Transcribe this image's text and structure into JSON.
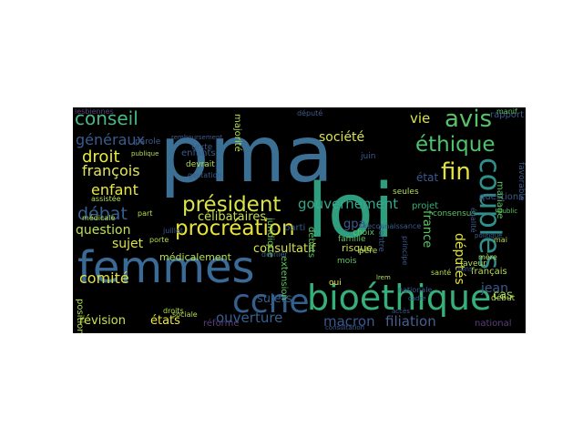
{
  "cloud": {
    "background": "#000000",
    "words": [
      {
        "text": "pma",
        "color": "#3b6f93"
      },
      {
        "text": "loi",
        "color": "#2f9e7f"
      },
      {
        "text": "femmes",
        "color": "#3a6a96"
      },
      {
        "text": "bioéthique",
        "color": "#35b07a"
      },
      {
        "text": "couples",
        "color": "#2f8f8a"
      },
      {
        "text": "ccne",
        "color": "#34608f"
      },
      {
        "text": "procréation",
        "color": "#e6e23a"
      },
      {
        "text": "président",
        "color": "#d9e24a"
      },
      {
        "text": "avis",
        "color": "#56c36a"
      },
      {
        "text": "fin",
        "color": "#e3e23d"
      },
      {
        "text": "conseil",
        "color": "#48b981"
      },
      {
        "text": "éthique",
        "color": "#4fc36b"
      },
      {
        "text": "comité",
        "color": "#e3e23d"
      },
      {
        "text": "gouvernement",
        "color": "#33a88a"
      },
      {
        "text": "débat",
        "color": "#35608f"
      },
      {
        "text": "enfant",
        "color": "#e8e83d"
      },
      {
        "text": "droit",
        "color": "#e8e83d"
      },
      {
        "text": "françois",
        "color": "#e1e65d"
      },
      {
        "text": "généraux",
        "color": "#3b5b8c"
      },
      {
        "text": "ouverture",
        "color": "#35608f"
      },
      {
        "text": "filiation",
        "color": "#4a5f8f"
      },
      {
        "text": "macron",
        "color": "#3b5890"
      },
      {
        "text": "sujets",
        "color": "#365d8d"
      },
      {
        "text": "révision",
        "color": "#cde24a"
      },
      {
        "text": "états",
        "color": "#e8e83d"
      },
      {
        "text": "question",
        "color": "#bde04f"
      },
      {
        "text": "sujet",
        "color": "#d9e24a"
      },
      {
        "text": "célibataires",
        "color": "#c8df52"
      },
      {
        "text": "consultatif",
        "color": "#d6e44a"
      },
      {
        "text": "société",
        "color": "#d9e24a"
      },
      {
        "text": "vie",
        "color": "#d9e24a"
      },
      {
        "text": "état",
        "color": "#3b5b8c"
      },
      {
        "text": "gpa",
        "color": "#3b5b8c"
      },
      {
        "text": "france",
        "color": "#5bc462"
      },
      {
        "text": "députés",
        "color": "#e3e23d"
      },
      {
        "text": "jean",
        "color": "#3b5b8c"
      },
      {
        "text": "cas",
        "color": "#a7d856"
      },
      {
        "text": "majorité",
        "color": "#b5de52"
      },
      {
        "text": "enfants",
        "color": "#3b5b8c"
      },
      {
        "text": "parole",
        "color": "#3b5b8c"
      },
      {
        "text": "texte",
        "color": "#3b5b8c"
      },
      {
        "text": "gestation",
        "color": "#3b5b8c"
      },
      {
        "text": "extension",
        "color": "#5bc462"
      },
      {
        "text": "juridique",
        "color": "#6cc55d"
      },
      {
        "text": "débats",
        "color": "#5bc462"
      },
      {
        "text": "risque",
        "color": "#c8df52"
      },
      {
        "text": "choix",
        "color": "#5bc462"
      },
      {
        "text": "famille",
        "color": "#5bc462"
      },
      {
        "text": "consensus",
        "color": "#5bc462"
      },
      {
        "text": "projet",
        "color": "#35b07a"
      },
      {
        "text": "questions",
        "color": "#3b5b8c"
      },
      {
        "text": "mariage",
        "color": "#5bc462"
      },
      {
        "text": "favorable",
        "color": "#3b5b8c"
      },
      {
        "text": "médicalement",
        "color": "#b5de52"
      },
      {
        "text": "position",
        "color": "#b5de52"
      },
      {
        "text": "réforme",
        "color": "#5b3f7d"
      },
      {
        "text": "national",
        "color": "#5b3f7d"
      },
      {
        "text": "français",
        "color": "#b5de52"
      },
      {
        "text": "rapport",
        "color": "#3b5b8c"
      },
      {
        "text": "parti",
        "color": "#3b5b8c"
      },
      {
        "text": "début",
        "color": "#b5de52"
      },
      {
        "text": "égalité",
        "color": "#3b5b8c"
      },
      {
        "text": "lesbiennes",
        "color": "#5b3f7d"
      },
      {
        "text": "devrait",
        "color": "#b5de52"
      },
      {
        "text": "assistée",
        "color": "#b5de52"
      },
      {
        "text": "seules",
        "color": "#b5de52"
      },
      {
        "text": "père",
        "color": "#b5de52"
      },
      {
        "text": "faveur",
        "color": "#b5de52"
      },
      {
        "text": "mois",
        "color": "#5bc462"
      },
      {
        "text": "juin",
        "color": "#3b5b8c"
      },
      {
        "text": "oui",
        "color": "#e8e83d"
      },
      {
        "text": "sociale",
        "color": "#b5de52"
      },
      {
        "text": "contre",
        "color": "#3b5b8c"
      },
      {
        "text": "principe",
        "color": "#3b5b8c"
      },
      {
        "text": "remboursement",
        "color": "#3b5b8c"
      },
      {
        "text": "droits",
        "color": "#b5de52"
      },
      {
        "text": "dernier",
        "color": "#3b5b8c"
      },
      {
        "text": "reconnaissance",
        "color": "#3b5b8c"
      },
      {
        "text": "santé",
        "color": "#b5de52"
      },
      {
        "text": "mère",
        "color": "#b5de52"
      },
      {
        "text": "consultation",
        "color": "#3b5b8c"
      },
      {
        "text": "part",
        "color": "#b5de52"
      },
      {
        "text": "porte",
        "color": "#b5de52"
      },
      {
        "text": "médicale",
        "color": "#b5de52"
      },
      {
        "text": "député",
        "color": "#3b5b8c"
      },
      {
        "text": "nationale",
        "color": "#3b5b8c"
      },
      {
        "text": "publique",
        "color": "#b5de52"
      },
      {
        "text": "politique",
        "color": "#3b5b8c"
      },
      {
        "text": "mai",
        "color": "#b5de52"
      },
      {
        "text": "juillet",
        "color": "#3b5b8c"
      },
      {
        "text": "dons",
        "color": "#3b5b8c"
      },
      {
        "text": "manif",
        "color": "#5bc462"
      },
      {
        "text": "public",
        "color": "#5bc462"
      },
      {
        "text": "cadre",
        "color": "#3b5b8c"
      },
      {
        "text": "lrem",
        "color": "#b5de52"
      },
      {
        "text": "accès",
        "color": "#3b5b8c"
      }
    ]
  }
}
